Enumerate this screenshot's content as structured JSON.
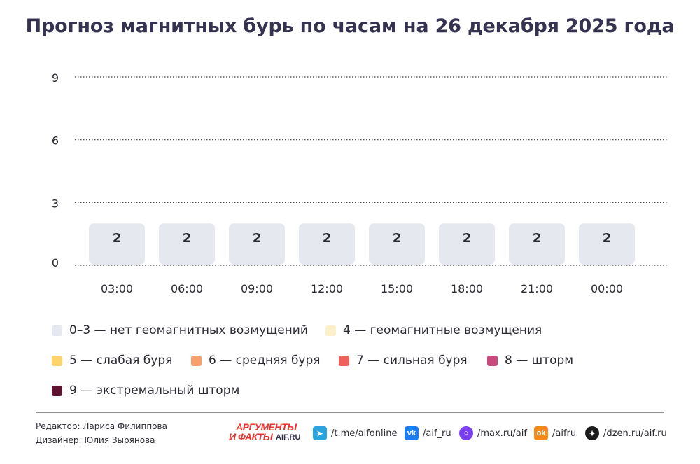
{
  "title": "Прогноз магнитных бурь по часам на 26 декабря 2025 года",
  "chart_data": {
    "type": "bar",
    "categories": [
      "03:00",
      "06:00",
      "09:00",
      "12:00",
      "15:00",
      "18:00",
      "21:00",
      "00:00"
    ],
    "values": [
      2,
      2,
      2,
      2,
      2,
      2,
      2,
      2
    ],
    "ylim": [
      0,
      9
    ],
    "yticks": [
      0,
      3,
      6,
      9
    ],
    "grid": true,
    "bar_color": "#e6e8f0",
    "grid_style": "dotted",
    "legend_placement": "bottom"
  },
  "legend": [
    {
      "label": "0–3 — нет геомагнитных возмущений",
      "color": "#e6e8f0"
    },
    {
      "label": "4 — геомагнитные возмущения",
      "color": "#fdefc7"
    },
    {
      "label": "5 — слабая буря",
      "color": "#fcd46a"
    },
    {
      "label": "6 — средняя буря",
      "color": "#f7a06b"
    },
    {
      "label": "7 — сильная буря",
      "color": "#f0605a"
    },
    {
      "label": "8 — шторм",
      "color": "#c84a7d"
    },
    {
      "label": "9 — экстремальный шторм",
      "color": "#5d1230"
    }
  ],
  "credits": {
    "editor": "Редактор: Лариса Филиппова",
    "designer": "Дизайнер: Юлия Зырянова"
  },
  "brand": {
    "line1": "АРГУМЕНТЫ",
    "line2": "И ФАКТЫ",
    "domain": "AIF.RU"
  },
  "social": [
    {
      "icon": "telegram-icon",
      "text": "/t.me/aifonline",
      "color": "#2aa3de"
    },
    {
      "icon": "vk-icon",
      "text": "/aif_ru",
      "color": "#1d7cf2"
    },
    {
      "icon": "max-icon",
      "text": "/max.ru/aif",
      "color": "#7b3ff2"
    },
    {
      "icon": "odnoklassniki-icon",
      "text": "/aifru",
      "color": "#f28a1e"
    },
    {
      "icon": "dzen-icon",
      "text": "/dzen.ru/aif.ru",
      "color": "#1c1c1c"
    }
  ]
}
